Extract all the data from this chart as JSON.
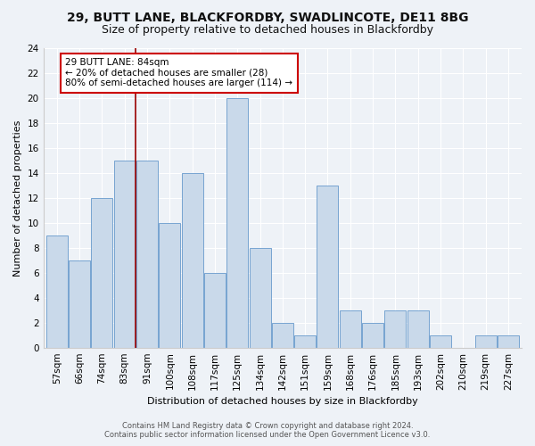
{
  "title1": "29, BUTT LANE, BLACKFORDBY, SWADLINCOTE, DE11 8BG",
  "title2": "Size of property relative to detached houses in Blackfordby",
  "xlabel": "Distribution of detached houses by size in Blackfordby",
  "ylabel": "Number of detached properties",
  "footer1": "Contains HM Land Registry data © Crown copyright and database right 2024.",
  "footer2": "Contains public sector information licensed under the Open Government Licence v3.0.",
  "categories": [
    "57sqm",
    "66sqm",
    "74sqm",
    "83sqm",
    "91sqm",
    "100sqm",
    "108sqm",
    "117sqm",
    "125sqm",
    "134sqm",
    "142sqm",
    "151sqm",
    "159sqm",
    "168sqm",
    "176sqm",
    "185sqm",
    "193sqm",
    "202sqm",
    "210sqm",
    "219sqm",
    "227sqm"
  ],
  "values": [
    9,
    7,
    12,
    15,
    15,
    10,
    14,
    6,
    20,
    8,
    2,
    1,
    13,
    3,
    2,
    3,
    3,
    1,
    0,
    1,
    1
  ],
  "bar_color": "#c9d9ea",
  "bar_edge_color": "#6699cc",
  "annotation_line1": "29 BUTT LANE: 84sqm",
  "annotation_line2": "← 20% of detached houses are smaller (28)",
  "annotation_line3": "80% of semi-detached houses are larger (114) →",
  "red_line_x": 3.5,
  "ylim": [
    0,
    24
  ],
  "yticks": [
    0,
    2,
    4,
    6,
    8,
    10,
    12,
    14,
    16,
    18,
    20,
    22,
    24
  ],
  "background_color": "#eef2f7",
  "plot_bg_color": "#eef2f7",
  "grid_color": "#ffffff",
  "red_line_color": "#990000",
  "box_edge_color": "#cc0000",
  "title1_fontsize": 10,
  "title2_fontsize": 9,
  "axis_label_fontsize": 8,
  "tick_fontsize": 7.5,
  "footer_fontsize": 6,
  "annot_fontsize": 7.5
}
